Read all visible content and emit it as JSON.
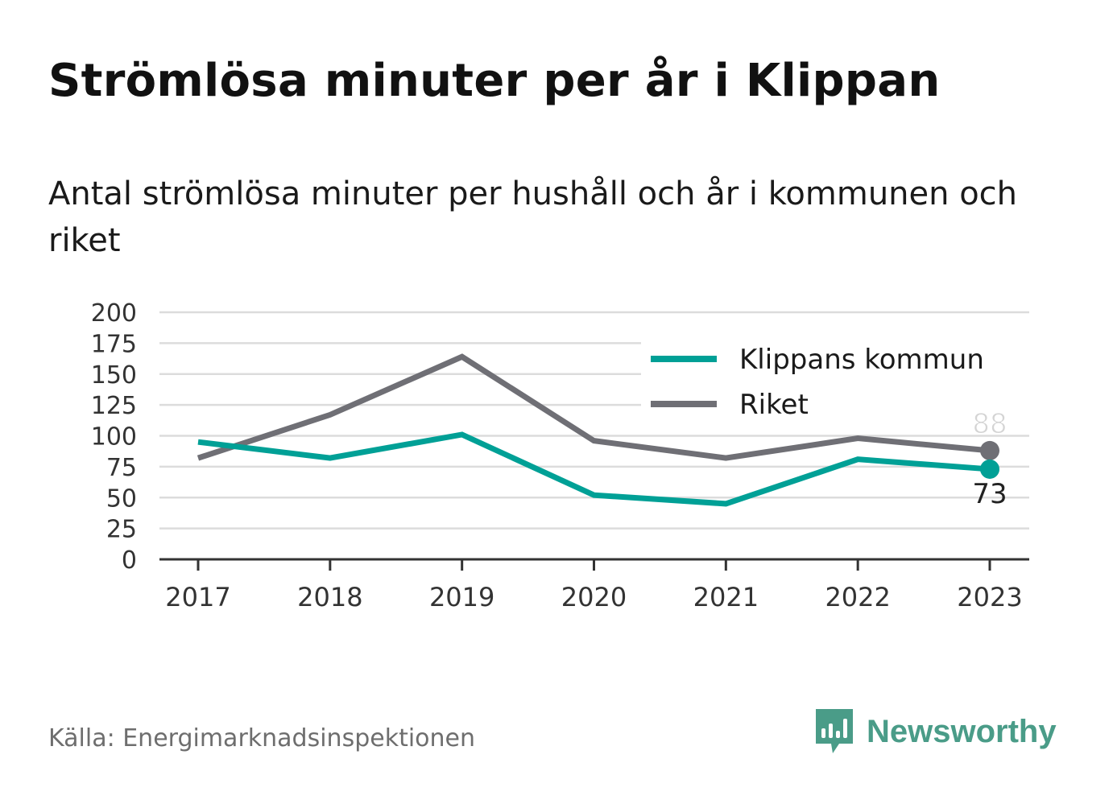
{
  "header": {
    "title": "Strömlösa minuter per år i Klippan",
    "subtitle": "Antal strömlösa minuter per hushåll och år i kommunen och riket"
  },
  "footer": {
    "source": "Källa: Energimarknadsinspektionen",
    "brand": "Newsworthy",
    "brand_icon": "bar-chart-speech-bubble-icon",
    "brand_color": "#4a9c88"
  },
  "chart_data": {
    "type": "line",
    "title": "Strömlösa minuter per år i Klippan",
    "subtitle": "Antal strömlösa minuter per hushåll och år i kommunen och riket",
    "xlabel": "",
    "ylabel": "",
    "x": [
      "2017",
      "2018",
      "2019",
      "2020",
      "2021",
      "2022",
      "2023"
    ],
    "ylim": [
      0,
      200
    ],
    "yticks": [
      0,
      25,
      50,
      75,
      100,
      125,
      150,
      175,
      200
    ],
    "grid": true,
    "legend_position": "top-right",
    "series": [
      {
        "name": "Klippans kommun",
        "color": "#00a096",
        "values": [
          95,
          82,
          101,
          52,
          45,
          81,
          73
        ],
        "end_label": "73"
      },
      {
        "name": "Riket",
        "color": "#6f6f75",
        "values": [
          82,
          117,
          164,
          96,
          82,
          98,
          88
        ],
        "end_label": "88"
      }
    ]
  }
}
